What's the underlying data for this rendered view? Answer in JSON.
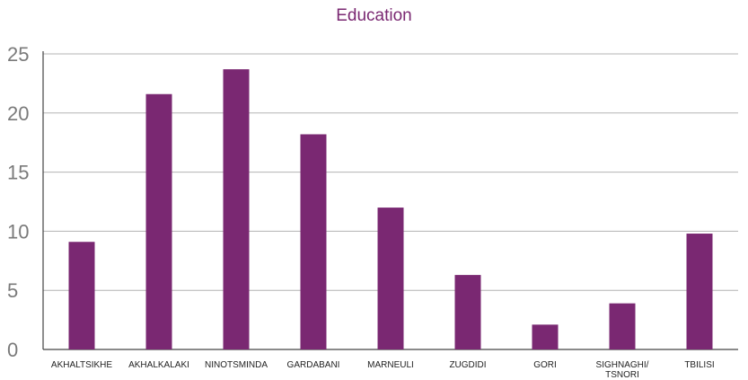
{
  "chart_data": {
    "type": "bar",
    "title": "Education",
    "xlabel": "",
    "ylabel": "",
    "categories": [
      "AKHALTSIKHE",
      "AKHALKALAKI",
      "NINOTSMINDA",
      "GARDABANI",
      "MARNEULI",
      "ZUGDIDI",
      "GORI",
      "SIGHNAGHI/ TSNORI",
      "TBILISI"
    ],
    "category_lines": [
      [
        "AKHALTSIKHE"
      ],
      [
        "AKHALKALAKI"
      ],
      [
        "NINOTSMINDA"
      ],
      [
        "GARDABANI"
      ],
      [
        "MARNEULI"
      ],
      [
        "ZUGDIDI"
      ],
      [
        "GORI"
      ],
      [
        "SIGHNAGHI/",
        "TSNORI"
      ],
      [
        "TBILISI"
      ]
    ],
    "values": [
      9.1,
      21.6,
      23.7,
      18.2,
      12.0,
      6.3,
      2.1,
      3.9,
      9.8
    ],
    "ylim": [
      0,
      25
    ],
    "yticks": [
      0,
      5,
      10,
      15,
      20,
      25
    ],
    "grid": true,
    "legend": "none",
    "bar_color": "#7a2872",
    "grid_color": "#b3b3b3"
  }
}
